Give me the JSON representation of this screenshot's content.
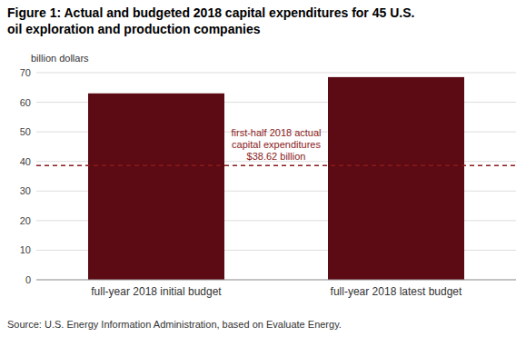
{
  "chart_data": {
    "type": "bar",
    "title": "Figure 1: Actual and budgeted 2018 capital expenditures for 45 U.S.\noil exploration and production companies",
    "ylabel": "billion dollars",
    "categories": [
      "full-year 2018 initial budget",
      "full-year 2018 latest budget"
    ],
    "values": [
      63.0,
      68.5
    ],
    "color": "#5C0A14",
    "ylim": [
      0,
      70
    ],
    "yticks": [
      0,
      10,
      20,
      30,
      40,
      50,
      60,
      70
    ],
    "grid": true,
    "annotations": [
      {
        "text": "first-half 2018 actual\ncapital expenditures\n$38.62 billion",
        "value": 38.62,
        "color": "#8B1A1A"
      }
    ],
    "source": "Source: U.S. Energy Information Administration, based on Evaluate Energy."
  }
}
